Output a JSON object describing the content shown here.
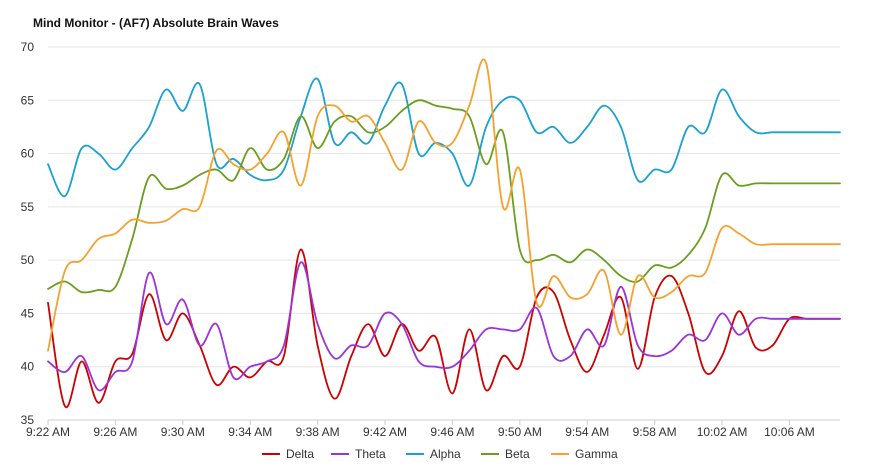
{
  "chart_data": {
    "type": "line",
    "title": "Mind Monitor - (AF7) Absolute Brain Waves",
    "xlabel": "",
    "ylabel": "",
    "ylim": [
      35,
      70
    ],
    "yticks": [
      "35",
      "40",
      "45",
      "50",
      "55",
      "60",
      "65",
      "70"
    ],
    "xlim_minutes": [
      "9:22 AM",
      "10:09 AM"
    ],
    "xticks": [
      "9:22 AM",
      "9:26 AM",
      "9:30 AM",
      "9:34 AM",
      "9:38 AM",
      "9:42 AM",
      "9:46 AM",
      "9:50 AM",
      "9:54 AM",
      "9:58 AM",
      "10:02 AM",
      "10:06 AM"
    ],
    "grid": "horizontal",
    "legend": "bottom",
    "x": [
      "9:22 AM",
      "9:23 AM",
      "9:24 AM",
      "9:25 AM",
      "9:26 AM",
      "9:27 AM",
      "9:28 AM",
      "9:29 AM",
      "9:30 AM",
      "9:31 AM",
      "9:32 AM",
      "9:33 AM",
      "9:34 AM",
      "9:35 AM",
      "9:36 AM",
      "9:37 AM",
      "9:38 AM",
      "9:39 AM",
      "9:40 AM",
      "9:41 AM",
      "9:42 AM",
      "9:43 AM",
      "9:44 AM",
      "9:45 AM",
      "9:46 AM",
      "9:47 AM",
      "9:48 AM",
      "9:49 AM",
      "9:50 AM",
      "9:51 AM",
      "9:52 AM",
      "9:53 AM",
      "9:54 AM",
      "9:55 AM",
      "9:56 AM",
      "9:57 AM",
      "9:58 AM",
      "9:59 AM",
      "10:00 AM",
      "10:01 AM",
      "10:02 AM",
      "10:03 AM",
      "10:04 AM",
      "10:05 AM",
      "10:06 AM",
      "10:07 AM",
      "10:08 AM",
      "10:09 AM"
    ],
    "series": [
      {
        "name": "Delta",
        "color": "#cc0000",
        "values": [
          46.0,
          36.3,
          40.5,
          36.6,
          40.5,
          41.2,
          46.8,
          42.5,
          45.0,
          42.0,
          38.3,
          40.0,
          39.0,
          40.5,
          41.0,
          51.0,
          42.0,
          37.0,
          41.0,
          44.0,
          41.0,
          44.0,
          41.5,
          42.8,
          37.5,
          43.5,
          37.8,
          41.0,
          40.0,
          46.5,
          47.0,
          42.5,
          39.5,
          43.0,
          46.5,
          39.8,
          46.5,
          48.5,
          45.0,
          39.5,
          41.0,
          45.2,
          41.8,
          42.0,
          44.5,
          44.5,
          44.5,
          44.5
        ]
      },
      {
        "name": "Theta",
        "color": "#9c33d6",
        "values": [
          40.5,
          39.5,
          41.0,
          37.8,
          39.5,
          40.5,
          48.8,
          44.0,
          46.3,
          42.0,
          44.0,
          39.0,
          40.0,
          40.5,
          42.0,
          49.8,
          44.0,
          40.8,
          42.0,
          42.0,
          45.0,
          44.0,
          40.5,
          40.0,
          40.0,
          41.5,
          43.5,
          43.5,
          43.5,
          45.5,
          41.0,
          41.0,
          43.5,
          42.0,
          47.5,
          42.0,
          41.0,
          41.5,
          43.0,
          42.5,
          45.0,
          43.0,
          44.5,
          44.5,
          44.5,
          44.5,
          44.5,
          44.5
        ]
      },
      {
        "name": "Alpha",
        "color": "#1ba1d0",
        "values": [
          59.0,
          56.0,
          60.5,
          60.0,
          58.5,
          60.5,
          62.5,
          66.0,
          64.0,
          66.5,
          59.0,
          59.5,
          58.0,
          57.5,
          58.5,
          63.5,
          67.0,
          61.0,
          62.0,
          61.0,
          64.5,
          66.5,
          60.0,
          61.0,
          60.0,
          57.0,
          62.5,
          65.0,
          65.0,
          62.0,
          62.5,
          61.0,
          62.5,
          64.5,
          62.5,
          57.5,
          58.5,
          58.5,
          62.5,
          62.0,
          66.0,
          63.5,
          62.0,
          62.0,
          62.0,
          62.0,
          62.0,
          62.0
        ]
      },
      {
        "name": "Beta",
        "color": "#6a9e1f",
        "values": [
          47.3,
          48.0,
          47.0,
          47.2,
          47.5,
          52.0,
          57.8,
          56.7,
          57.0,
          58.0,
          58.5,
          57.5,
          60.5,
          58.5,
          59.5,
          63.5,
          60.5,
          63.0,
          63.5,
          62.0,
          62.5,
          64.0,
          65.0,
          64.5,
          64.2,
          63.5,
          59.0,
          62.0,
          51.0,
          50.0,
          50.5,
          49.8,
          51.0,
          50.0,
          48.5,
          48.0,
          49.5,
          49.3,
          50.5,
          53.0,
          58.0,
          57.0,
          57.2,
          57.2,
          57.2,
          57.2,
          57.2,
          57.2
        ]
      },
      {
        "name": "Gamma",
        "color": "#f5a12e",
        "values": [
          41.5,
          49.0,
          50.0,
          52.0,
          52.5,
          53.8,
          53.5,
          53.7,
          54.8,
          55.0,
          60.3,
          59.0,
          58.5,
          60.0,
          62.0,
          57.0,
          63.5,
          64.5,
          63.0,
          63.5,
          61.0,
          58.5,
          63.0,
          61.0,
          61.0,
          64.5,
          68.5,
          55.0,
          58.5,
          46.0,
          48.5,
          46.5,
          46.8,
          49.0,
          43.0,
          48.5,
          46.5,
          47.0,
          48.5,
          48.8,
          53.0,
          52.5,
          51.5,
          51.5,
          51.5,
          51.5,
          51.5,
          51.5
        ]
      }
    ]
  }
}
